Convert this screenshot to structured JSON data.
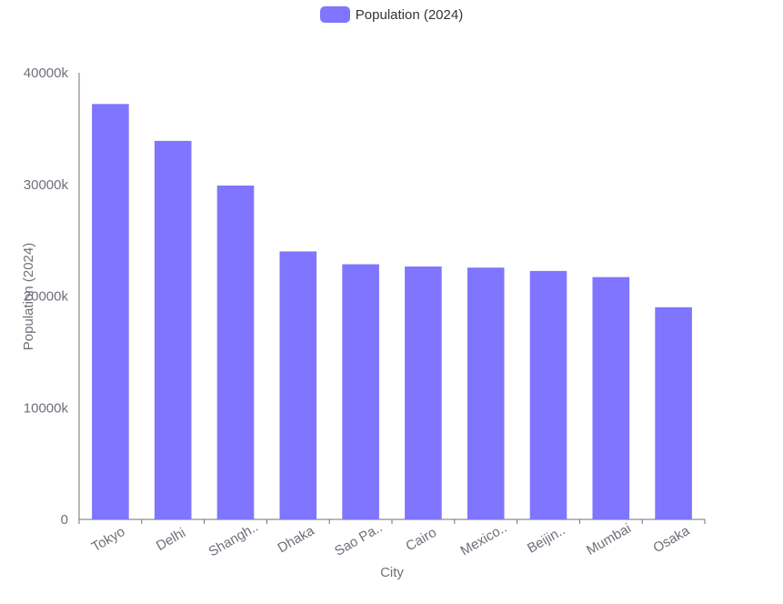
{
  "chart_data": {
    "type": "bar",
    "legend": {
      "position": "top-center",
      "entries": [
        "Population (2024)"
      ]
    },
    "series": [
      {
        "name": "Population (2024)",
        "color": "#7f75fe",
        "values": [
          37200,
          33900,
          29900,
          24000,
          22850,
          22650,
          22550,
          22250,
          21700,
          19000
        ]
      }
    ],
    "categories": [
      "Tokyo",
      "Delhi",
      "Shangh..",
      "Dhaka",
      "Sao Pa..",
      "Cairo",
      "Mexico..",
      "Beijin..",
      "Mumbai",
      "Osaka"
    ],
    "xlabel": "City",
    "ylabel": "Population (2024)",
    "ylim": [
      0,
      40000
    ],
    "yticks": [
      "0",
      "10000k",
      "20000k",
      "30000k",
      "40000k"
    ],
    "ytick_values": [
      0,
      10000,
      20000,
      30000,
      40000
    ],
    "grid": false
  }
}
